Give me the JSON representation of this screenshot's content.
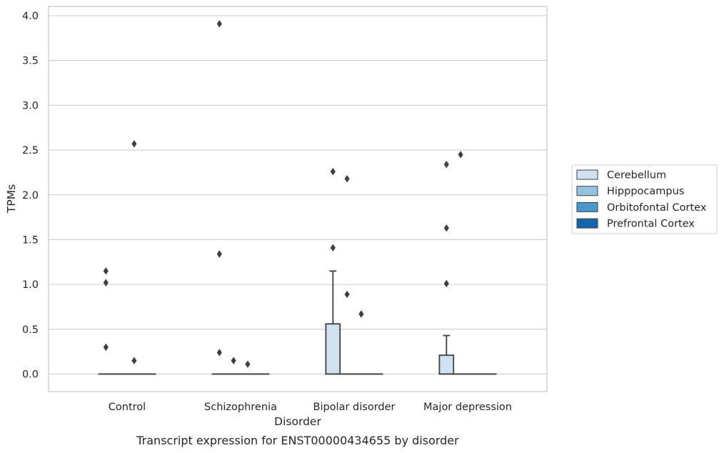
{
  "caption": "Transcript expression for ENST00000434655 by disorder",
  "chart_data": {
    "type": "box",
    "xlabel": "Disorder",
    "ylabel": "TPMs",
    "categories": [
      "Control",
      "Schizophrenia",
      "Bipolar disorder",
      "Major depression"
    ],
    "ylim": [
      -0.19,
      4.11
    ],
    "yticks": [
      0.0,
      0.5,
      1.0,
      1.5,
      2.0,
      2.5,
      3.0,
      3.5,
      4.0
    ],
    "ytick_labels": [
      "0.0",
      "0.5",
      "1.0",
      "1.5",
      "2.0",
      "2.5",
      "3.0",
      "3.5",
      "4.0"
    ],
    "grid": "horizontal",
    "legend_position": "right",
    "series": [
      {
        "name": "Cerebellum",
        "color": "#d0e1f2",
        "boxes": [
          {
            "q1": 0,
            "median": 0,
            "q3": 0,
            "whisker_low": 0,
            "whisker_high": 0,
            "outliers": [
              1.15,
              1.02,
              0.3
            ]
          },
          {
            "q1": 0,
            "median": 0,
            "q3": 0,
            "whisker_low": 0,
            "whisker_high": 0,
            "outliers": [
              3.91,
              1.34,
              0.24
            ]
          },
          {
            "q1": 0,
            "median": 0,
            "q3": 0.56,
            "whisker_low": 0,
            "whisker_high": 1.15,
            "outliers": [
              2.26,
              1.41
            ]
          },
          {
            "q1": 0,
            "median": 0,
            "q3": 0.21,
            "whisker_low": 0,
            "whisker_high": 0.43,
            "outliers": [
              2.34,
              1.63,
              1.01
            ]
          }
        ]
      },
      {
        "name": "Hipppocampus",
        "color": "#94c4df",
        "boxes": [
          {
            "q1": 0,
            "median": 0,
            "q3": 0,
            "whisker_low": 0,
            "whisker_high": 0,
            "outliers": []
          },
          {
            "q1": 0,
            "median": 0,
            "q3": 0,
            "whisker_low": 0,
            "whisker_high": 0,
            "outliers": [
              0.15
            ]
          },
          {
            "q1": 0,
            "median": 0,
            "q3": 0,
            "whisker_low": 0,
            "whisker_high": 0,
            "outliers": [
              2.18,
              0.89
            ]
          },
          {
            "q1": 0,
            "median": 0,
            "q3": 0,
            "whisker_low": 0,
            "whisker_high": 0,
            "outliers": [
              2.45
            ]
          }
        ]
      },
      {
        "name": "Orbitofontal Cortex",
        "color": "#4a98c9",
        "boxes": [
          {
            "q1": 0,
            "median": 0,
            "q3": 0,
            "whisker_low": 0,
            "whisker_high": 0,
            "outliers": [
              2.57,
              0.15
            ]
          },
          {
            "q1": 0,
            "median": 0,
            "q3": 0,
            "whisker_low": 0,
            "whisker_high": 0,
            "outliers": [
              0.11
            ]
          },
          {
            "q1": 0,
            "median": 0,
            "q3": 0,
            "whisker_low": 0,
            "whisker_high": 0,
            "outliers": [
              0.67
            ]
          },
          {
            "q1": 0,
            "median": 0,
            "q3": 0,
            "whisker_low": 0,
            "whisker_high": 0,
            "outliers": []
          }
        ]
      },
      {
        "name": "Prefrontal Cortex",
        "color": "#1764ab",
        "boxes": [
          {
            "q1": 0,
            "median": 0,
            "q3": 0,
            "whisker_low": 0,
            "whisker_high": 0,
            "outliers": []
          },
          {
            "q1": 0,
            "median": 0,
            "q3": 0,
            "whisker_low": 0,
            "whisker_high": 0,
            "outliers": []
          },
          {
            "q1": 0,
            "median": 0,
            "q3": 0,
            "whisker_low": 0,
            "whisker_high": 0,
            "outliers": []
          },
          {
            "q1": 0,
            "median": 0,
            "q3": 0,
            "whisker_low": 0,
            "whisker_high": 0,
            "outliers": []
          }
        ]
      }
    ],
    "colors": {
      "box_edge": "#3f3f3f",
      "grid": "#cccccc",
      "frame": "#cccccc"
    }
  }
}
